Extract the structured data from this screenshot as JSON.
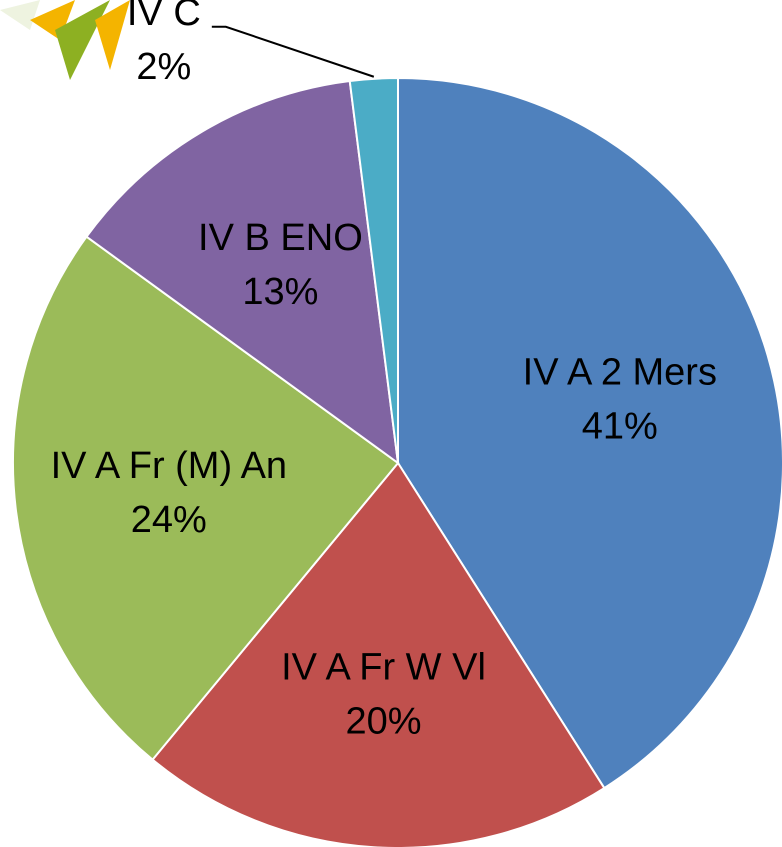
{
  "chart_data": {
    "type": "pie",
    "categories": [
      "IV A 2 Mers",
      "IV A Fr W Vl",
      "IV A Fr (M) An",
      "IV B ENO",
      "IV C"
    ],
    "values": [
      41,
      20,
      24,
      13,
      2
    ],
    "value_labels": [
      "41%",
      "20%",
      "24%",
      "13%",
      "2%"
    ],
    "colors": [
      "#4f81bd",
      "#c0504d",
      "#9bbb59",
      "#8064a2",
      "#4bacc6"
    ]
  }
}
